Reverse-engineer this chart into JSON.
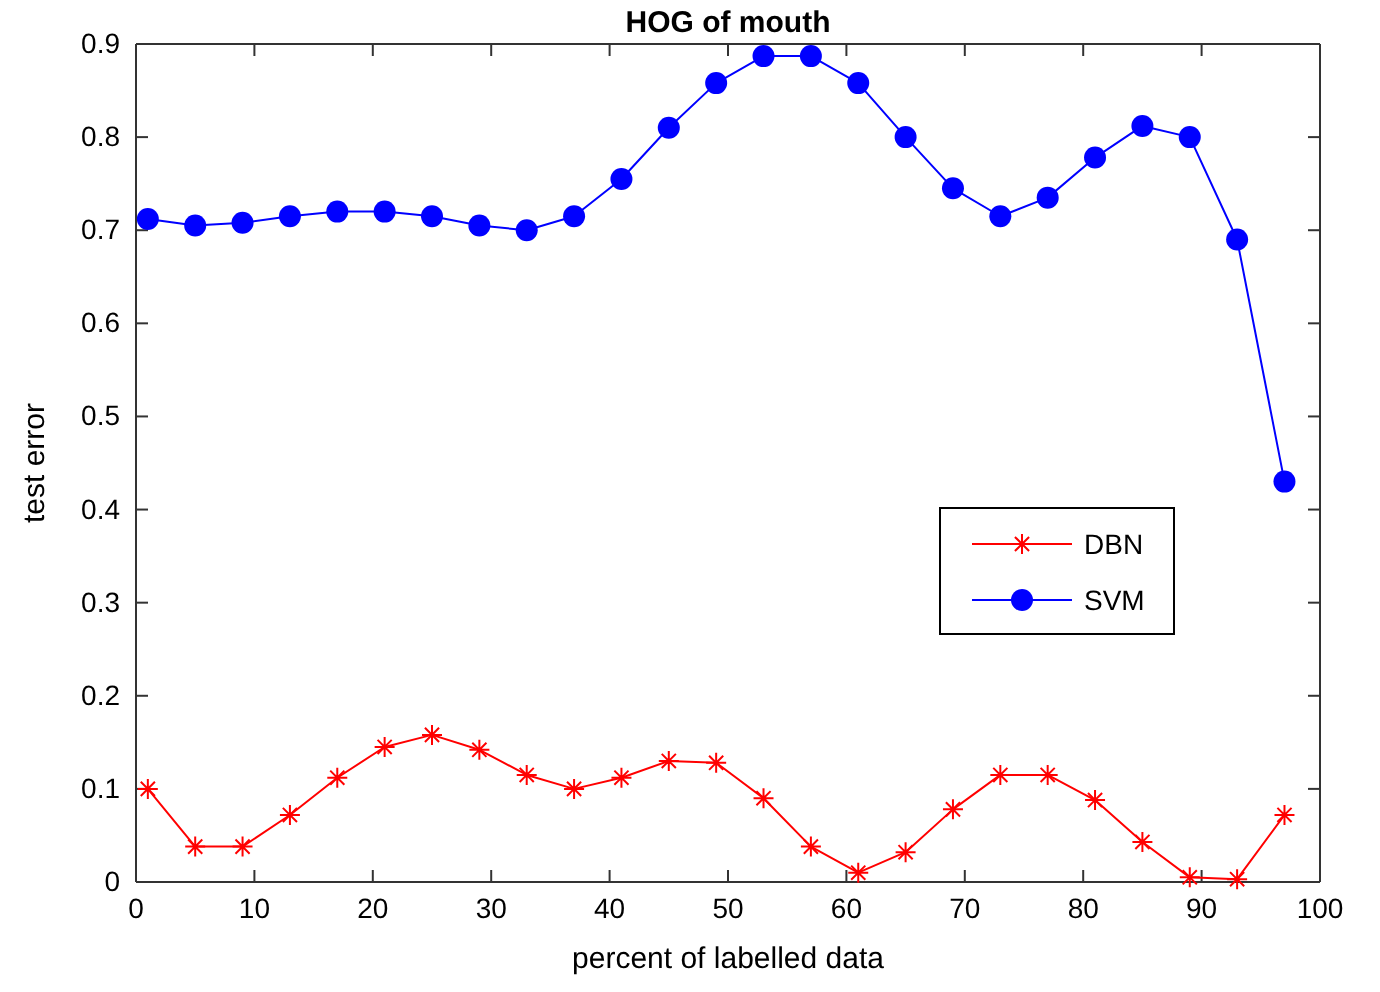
{
  "chart_data": {
    "type": "line",
    "title": "HOG of mouth",
    "xlabel": "percent of labelled data",
    "ylabel": "test error",
    "x": [
      1,
      5,
      9,
      13,
      17,
      21,
      25,
      29,
      33,
      37,
      41,
      45,
      49,
      53,
      57,
      61,
      65,
      69,
      73,
      77,
      81,
      85,
      89,
      93,
      97
    ],
    "series": [
      {
        "name": "DBN",
        "color": "#ff0000",
        "marker": "cross",
        "values": [
          0.1,
          0.038,
          0.038,
          0.072,
          0.112,
          0.145,
          0.158,
          0.142,
          0.115,
          0.1,
          0.112,
          0.13,
          0.128,
          0.09,
          0.038,
          0.01,
          0.032,
          0.078,
          0.115,
          0.115,
          0.088,
          0.043,
          0.005,
          0.003,
          0.072
        ]
      },
      {
        "name": "SVM",
        "color": "#0000ff",
        "marker": "circle",
        "values": [
          0.712,
          0.705,
          0.708,
          0.715,
          0.72,
          0.72,
          0.715,
          0.705,
          0.7,
          0.715,
          0.755,
          0.81,
          0.858,
          0.887,
          0.887,
          0.858,
          0.8,
          0.745,
          0.715,
          0.735,
          0.778,
          0.812,
          0.8,
          0.69,
          0.43
        ]
      }
    ],
    "xlim": [
      0,
      100
    ],
    "xticks": [
      0,
      10,
      20,
      30,
      40,
      50,
      60,
      70,
      80,
      90,
      100
    ],
    "ylim": [
      0,
      0.9
    ],
    "yticks": [
      0,
      0.1,
      0.2,
      0.3,
      0.4,
      0.5,
      0.6,
      0.7,
      0.8,
      0.9
    ],
    "grid": false,
    "legend": "right",
    "line_style": "solid"
  }
}
